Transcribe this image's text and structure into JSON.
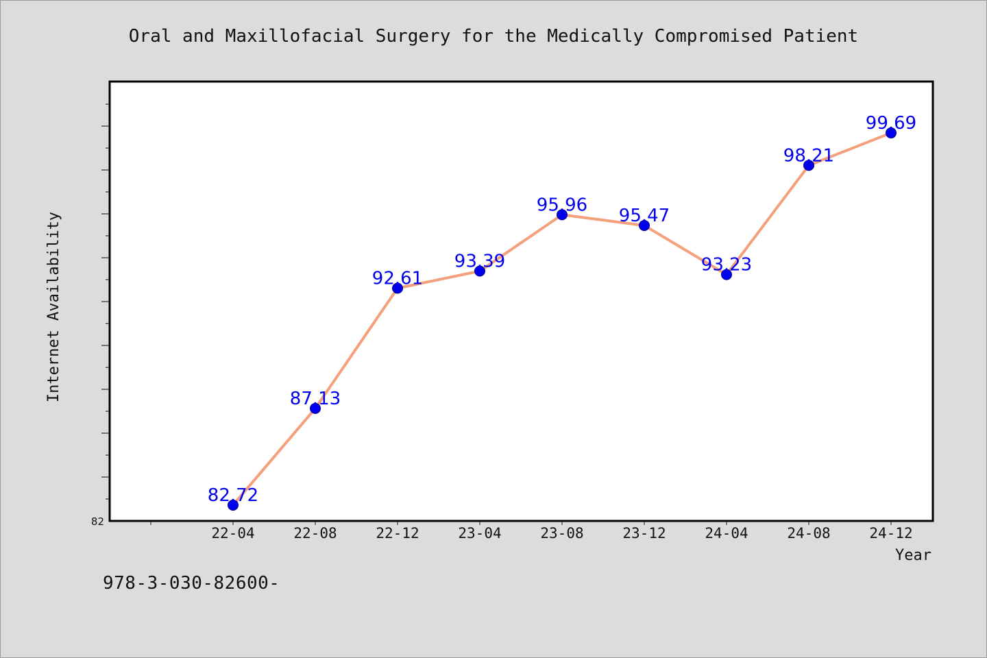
{
  "chart_data": {
    "type": "line",
    "title": "Oral and Maxillofacial Surgery for the Medically Compromised Patient",
    "xlabel": "Year",
    "ylabel": "Internet Availability",
    "categories": [
      "22-04",
      "22-08",
      "22-12",
      "23-04",
      "23-08",
      "23-12",
      "24-04",
      "24-08",
      "24-12"
    ],
    "series": [
      {
        "values": [
          82.72,
          87.13,
          92.61,
          93.39,
          95.96,
          95.47,
          93.23,
          98.21,
          99.69
        ]
      }
    ],
    "ylim": [
      82,
      102
    ],
    "y_tick_labels": [
      "82"
    ],
    "grid": false,
    "legend": "none",
    "colors": {
      "line": "#f4a07a",
      "marker": "#0000ee",
      "data_label": "#0000ee",
      "plot_background": "#ffffff",
      "page_background": "#dcdcdc"
    }
  },
  "footnote": "978-3-030-82600-"
}
